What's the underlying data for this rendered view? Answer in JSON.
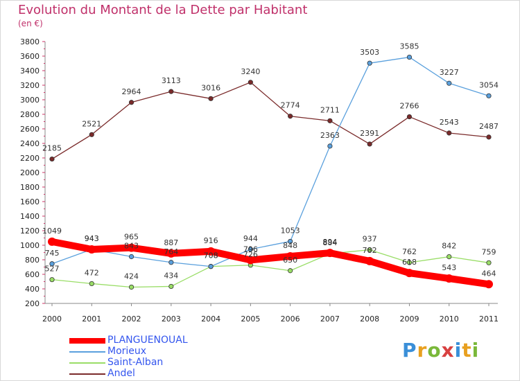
{
  "title": "Evolution du Montant de la Dette par Habitant",
  "unit": "(en €)",
  "logo": {
    "text": "Proxiti",
    "colors": [
      "#3a8fd8",
      "#e8a020",
      "#7ab83a",
      "#d84040"
    ]
  },
  "chart_data": {
    "type": "line",
    "title": "Evolution du Montant de la Dette par Habitant",
    "ylabel": "(en €)",
    "xlabel": "",
    "x": [
      "2000",
      "2001",
      "2002",
      "2003",
      "2004",
      "2005",
      "2006",
      "2007",
      "2008",
      "2009",
      "2010",
      "2011"
    ],
    "ylim": [
      200,
      3800
    ],
    "yticks": [
      200,
      400,
      600,
      800,
      1000,
      1200,
      1400,
      1600,
      1800,
      2000,
      2200,
      2400,
      2600,
      2800,
      3000,
      3200,
      3400,
      3600,
      3800
    ],
    "grid": false,
    "legend": "bottom-left",
    "series": [
      {
        "name": "PLANGUENOUAL",
        "color": "#ff0000",
        "values": [
          1049,
          943,
          965,
          887,
          916,
          796,
          848,
          894,
          782,
          618,
          543,
          464
        ]
      },
      {
        "name": "Morieux",
        "color": "#5aa0dd",
        "values": [
          745,
          943,
          843,
          764,
          708,
          944,
          1053,
          2363,
          3503,
          3585,
          3227,
          3054
        ]
      },
      {
        "name": "Saint-Alban",
        "color": "#99dd66",
        "values": [
          527,
          472,
          424,
          434,
          708,
          726,
          650,
          884,
          937,
          762,
          842,
          759
        ]
      },
      {
        "name": "Andel",
        "color": "#7a2a2a",
        "values": [
          2185,
          2521,
          2964,
          3113,
          3016,
          3240,
          2774,
          2711,
          2391,
          2766,
          2543,
          2487
        ]
      }
    ],
    "data_labels": [
      {
        "series": 0,
        "labels": [
          "1049",
          "943",
          "965",
          "887",
          "916",
          "796",
          "848",
          "894",
          "782",
          "618",
          "543",
          "464"
        ]
      },
      {
        "series": 1,
        "labels": [
          "745",
          "943",
          "843",
          "764",
          "708",
          "944",
          "1053",
          "2363",
          "3503",
          "3585",
          "3227",
          "3054"
        ]
      },
      {
        "series": 2,
        "labels": [
          "527",
          "472",
          "424",
          "434",
          "708",
          "726",
          "650",
          "884",
          "937",
          "762",
          "842",
          "759"
        ]
      },
      {
        "series": 3,
        "labels": [
          "2185",
          "2521",
          "2964",
          "3113",
          "3016",
          "3240",
          "2774",
          "2711",
          "2391",
          "2766",
          "2543",
          "2487"
        ]
      }
    ]
  }
}
